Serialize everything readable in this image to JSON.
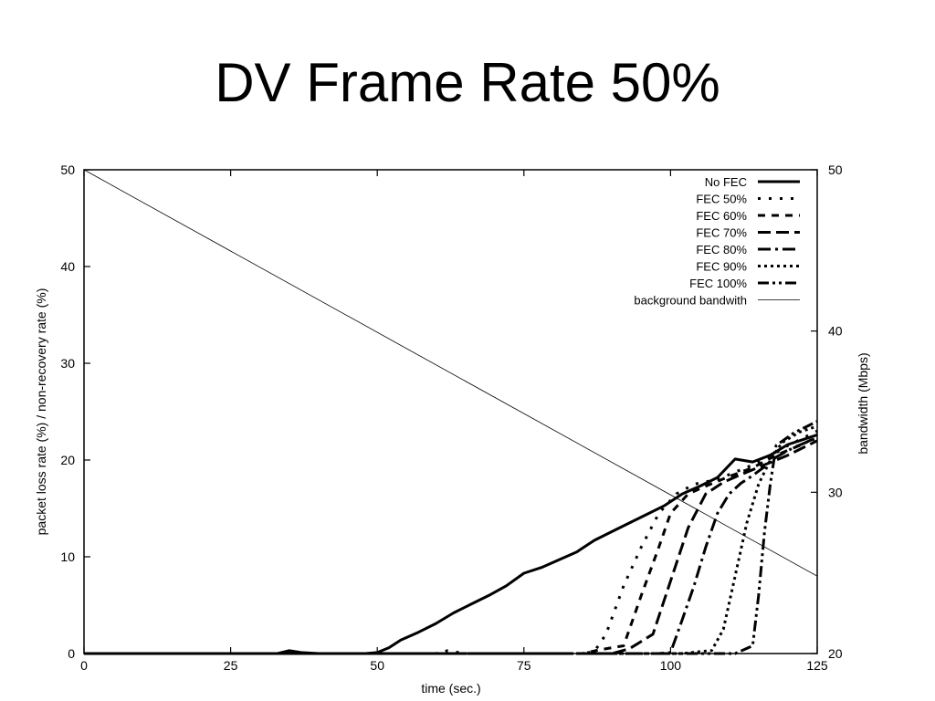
{
  "slide": {
    "title": "DV Frame Rate 50%"
  },
  "chart_data": {
    "type": "line",
    "title": "",
    "xlabel": "time (sec.)",
    "ylabel": "packet loss rate (%) / non-recovery rate (%)",
    "y2label": "bandwidth (Mbps)",
    "xlim": [
      0,
      125
    ],
    "ylim": [
      0,
      50
    ],
    "y2lim": [
      20,
      50
    ],
    "x_ticks": [
      "0",
      "25",
      "50",
      "75",
      "100",
      "125"
    ],
    "y_ticks": [
      "0",
      "10",
      "20",
      "30",
      "40",
      "50"
    ],
    "y2_ticks": [
      "20",
      "30",
      "40",
      "50"
    ],
    "grid": false,
    "legend_position": "top-right",
    "series": [
      {
        "name": "No FEC",
        "axis": "left",
        "dash": "solid",
        "width": 3,
        "x": [
          0,
          30,
          33,
          35,
          37,
          40,
          45,
          48,
          50,
          52,
          54,
          57,
          60,
          63,
          66,
          69,
          72,
          75,
          78,
          81,
          84,
          87,
          90,
          93,
          96,
          99,
          102,
          105,
          108,
          111,
          114,
          117,
          120,
          123,
          125
        ],
        "y": [
          0,
          0,
          0,
          0.3,
          0.1,
          0,
          0,
          0,
          0.1,
          0.6,
          1.4,
          2.2,
          3.1,
          4.2,
          5.1,
          6.0,
          7.0,
          8.3,
          8.9,
          9.7,
          10.5,
          11.7,
          12.6,
          13.5,
          14.4,
          15.3,
          16.5,
          17.3,
          18.2,
          20.1,
          19.8,
          20.5,
          21.6,
          22.2,
          22.6
        ]
      },
      {
        "name": "FEC 50%",
        "axis": "left",
        "dash": "dot",
        "width": 3,
        "x": [
          0,
          55,
          60,
          62,
          65,
          80,
          85,
          87,
          89,
          92,
          95,
          98,
          101,
          104,
          108,
          112,
          116,
          120,
          125
        ],
        "y": [
          0,
          0,
          0,
          0.3,
          0,
          0,
          0,
          0.2,
          2.0,
          7.0,
          11.0,
          14.5,
          16.5,
          17.5,
          18.0,
          19.0,
          20.0,
          21.5,
          23.0
        ]
      },
      {
        "name": "FEC 60%",
        "axis": "left",
        "dash": "dash",
        "width": 3,
        "x": [
          0,
          85,
          88,
          92,
          95,
          98,
          100,
          103,
          106,
          110,
          114,
          118,
          122,
          125
        ],
        "y": [
          0,
          0,
          0.4,
          0.8,
          6.0,
          11.0,
          14.5,
          16.5,
          17.3,
          18.3,
          19.2,
          20.5,
          21.5,
          22.4
        ]
      },
      {
        "name": "FEC 70%",
        "axis": "left",
        "dash": "longdash",
        "width": 3,
        "x": [
          0,
          90,
          93,
          97,
          100,
          103,
          106,
          109,
          112,
          116,
          120,
          125
        ],
        "y": [
          0,
          0,
          0.5,
          2.0,
          7.5,
          13.0,
          16.5,
          17.7,
          18.5,
          19.5,
          20.5,
          22.0
        ]
      },
      {
        "name": "FEC 80%",
        "axis": "left",
        "dash": "dashdot",
        "width": 3,
        "x": [
          0,
          98,
          100,
          102,
          104,
          106,
          108,
          110,
          112,
          114,
          116,
          118,
          121,
          125
        ],
        "y": [
          0,
          0,
          0.1,
          3.5,
          7.0,
          11.0,
          14.5,
          16.5,
          17.6,
          18.4,
          19.3,
          20.3,
          21.3,
          22.3
        ]
      },
      {
        "name": "FEC 90%",
        "axis": "left",
        "dash": "densedot",
        "width": 3,
        "x": [
          0,
          102,
          105,
          107,
          109,
          111,
          113,
          115,
          117,
          119,
          122,
          125
        ],
        "y": [
          0,
          0,
          0.2,
          0.3,
          2.5,
          8.0,
          13.5,
          17.5,
          20.0,
          21.8,
          22.9,
          23.5
        ]
      },
      {
        "name": "FEC 100%",
        "axis": "left",
        "dash": "dashdotdot",
        "width": 3,
        "x": [
          0,
          108,
          111,
          114,
          115,
          116,
          117,
          118,
          121,
          125
        ],
        "y": [
          0,
          0,
          0,
          0.8,
          6.0,
          12.5,
          17.5,
          21.5,
          22.8,
          24.0
        ]
      },
      {
        "name": "background bandwith",
        "axis": "right",
        "dash": "solid",
        "width": 0.8,
        "x": [
          0,
          125
        ],
        "y": [
          50,
          24.8
        ]
      }
    ]
  }
}
